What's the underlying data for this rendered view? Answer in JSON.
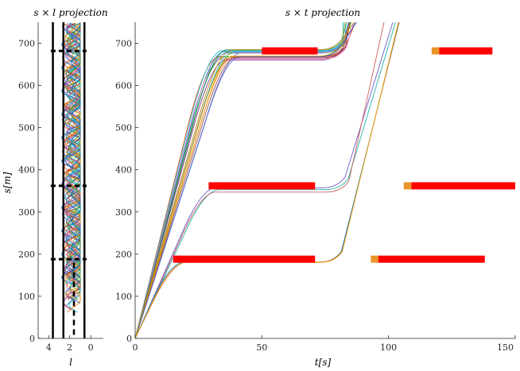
{
  "chart_data": [
    {
      "type": "line",
      "title": "s × l projection",
      "xlabel": "l",
      "ylabel": "s[m]",
      "xlim": [
        5,
        -1.2
      ],
      "ylim": [
        0,
        750
      ],
      "x_ticks": [
        4,
        2,
        0
      ],
      "y_ticks": [
        0,
        100,
        200,
        300,
        400,
        500,
        600,
        700
      ],
      "lane_boundaries_solid": [
        3.6,
        2.6,
        0.6
      ],
      "lane_center_dashed": 1.6,
      "stop_lines": [
        {
          "s": 188,
          "l_range": [
            3.8,
            0.4
          ]
        },
        {
          "s": 362,
          "l_range": [
            3.8,
            0.4
          ]
        },
        {
          "s": 682,
          "l_range": [
            3.8,
            0.4
          ]
        }
      ],
      "trajectory_band": {
        "l_range": [
          1.0,
          3.2
        ],
        "s_range": [
          0,
          750
        ]
      },
      "colors": {
        "boundary": "#000000",
        "stop_line": "#000000"
      }
    },
    {
      "type": "line",
      "title": "s × t projection",
      "xlabel": "t[s]",
      "ylabel": "",
      "xlim": [
        0,
        150
      ],
      "ylim": [
        0,
        750
      ],
      "x_ticks": [
        0,
        50,
        100,
        150
      ],
      "y_ticks": [
        0,
        100,
        200,
        300,
        400,
        500,
        600,
        700
      ],
      "obstacles": [
        {
          "s": 188,
          "t_start": 15,
          "t_end": 71,
          "color": "#ff0000"
        },
        {
          "s": 188,
          "t_start": 93,
          "t_end": 96,
          "color": "#e8952a"
        },
        {
          "s": 188,
          "t_start": 96,
          "t_end": 138,
          "color": "#ff0000"
        },
        {
          "s": 362,
          "t_start": 29,
          "t_end": 71,
          "color": "#ff0000"
        },
        {
          "s": 362,
          "t_start": 106,
          "t_end": 109,
          "color": "#e8952a"
        },
        {
          "s": 362,
          "t_start": 109,
          "t_end": 150,
          "color": "#ff0000"
        },
        {
          "s": 682,
          "t_start": 50,
          "t_end": 72,
          "color": "#ff0000"
        },
        {
          "s": 682,
          "t_start": 117,
          "t_end": 120,
          "color": "#e8952a"
        },
        {
          "s": 682,
          "t_start": 120,
          "t_end": 141,
          "color": "#ff0000"
        }
      ],
      "trajectory_groups": [
        {
          "count": 18,
          "start_t": [
            [
              0,
              0
            ]
          ],
          "ramp_end_t_range": [
            27,
            36
          ],
          "ramp_end_s": 665,
          "hold_until_t": 72,
          "end_t_range": [
            82,
            88
          ],
          "end_s": 750,
          "hold_s_range": [
            660,
            685
          ]
        },
        {
          "count": 3,
          "ramp_end_t_range": [
            25,
            28
          ],
          "ramp_end_s": 350,
          "hold_until_t": 73,
          "end_t_range": [
            98,
            105
          ],
          "end_s": 750,
          "hold_s_range": [
            345,
            360
          ]
        },
        {
          "count": 3,
          "ramp_end_t_range": [
            13,
            15
          ],
          "ramp_end_s": 182,
          "hold_until_t": 71,
          "end_t_range": [
            102,
            108
          ],
          "end_s": 750,
          "hold_s_range": [
            178,
            183
          ]
        }
      ],
      "series_colors": [
        "#0072bd",
        "#d95319",
        "#edb120",
        "#7e2f8e",
        "#77ac30",
        "#4dbeee",
        "#a2142f",
        "#1f77b4",
        "#2ca02c",
        "#9467bd",
        "#8c564b",
        "#17becf",
        "#bcbd22",
        "#e377c2",
        "#ff7f0e",
        "#3a5fcd",
        "#2e8b57",
        "#b8860b",
        "#6a5acd",
        "#20b2aa",
        "#cd5c5c"
      ]
    }
  ]
}
